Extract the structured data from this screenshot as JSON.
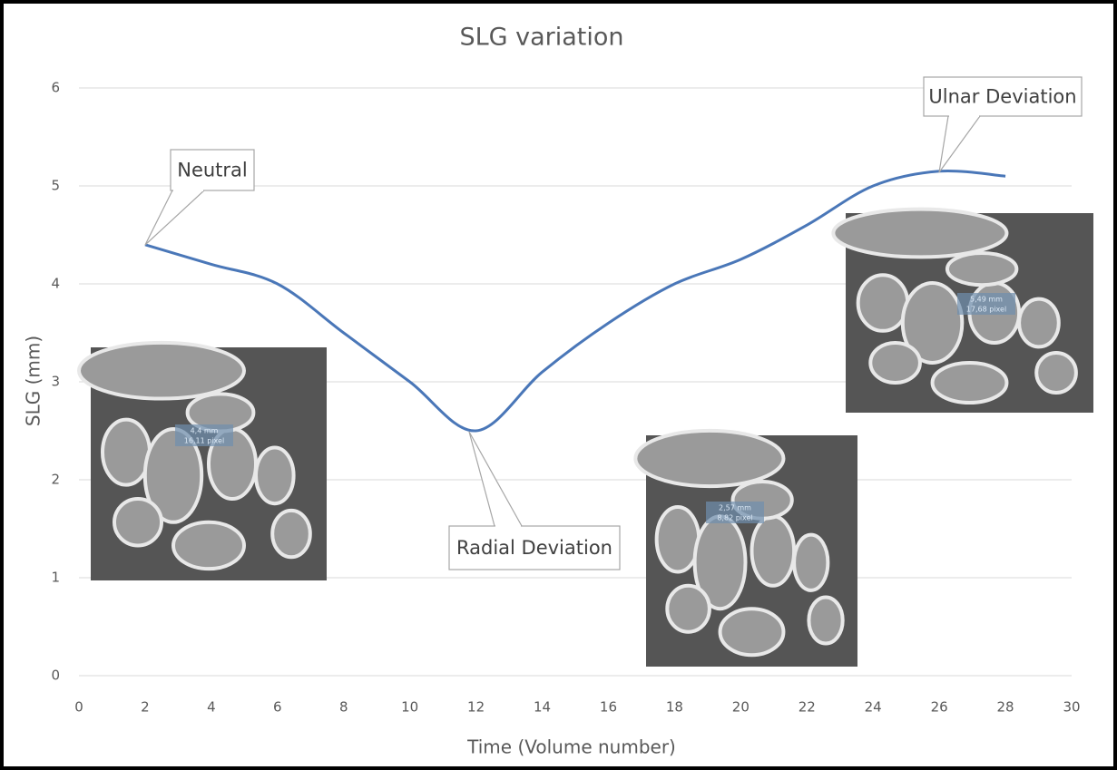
{
  "chart_data": {
    "type": "line",
    "title": "SLG variation",
    "x_label": "Time (Volume number)",
    "y_label": "SLG (mm)",
    "x": [
      2,
      4,
      6,
      8,
      10,
      12,
      14,
      16,
      18,
      20,
      22,
      24,
      26,
      28
    ],
    "series": [
      {
        "name": "SLG",
        "color": "#4a77b8",
        "values": [
          4.4,
          4.2,
          4.0,
          3.5,
          3.0,
          2.5,
          3.1,
          3.6,
          4.0,
          4.25,
          4.6,
          5.0,
          5.15,
          5.1
        ]
      }
    ],
    "xlim": [
      0,
      30
    ],
    "xticks": [
      0,
      2,
      4,
      6,
      8,
      10,
      12,
      14,
      16,
      18,
      20,
      22,
      24,
      26,
      28,
      30
    ],
    "ylim": [
      0,
      6
    ],
    "yticks": [
      0,
      1,
      2,
      3,
      4,
      5,
      6
    ],
    "grid": true,
    "annotations": [
      "Neutral",
      "Radial Deviation",
      "Ulnar Deviation"
    ],
    "image_labels": [
      [
        "4,4 mm",
        "16,11 pixel"
      ],
      [
        "2,57 mm",
        "8,82 pixel"
      ],
      [
        "5,49 mm",
        "17,68 pixel"
      ]
    ]
  }
}
